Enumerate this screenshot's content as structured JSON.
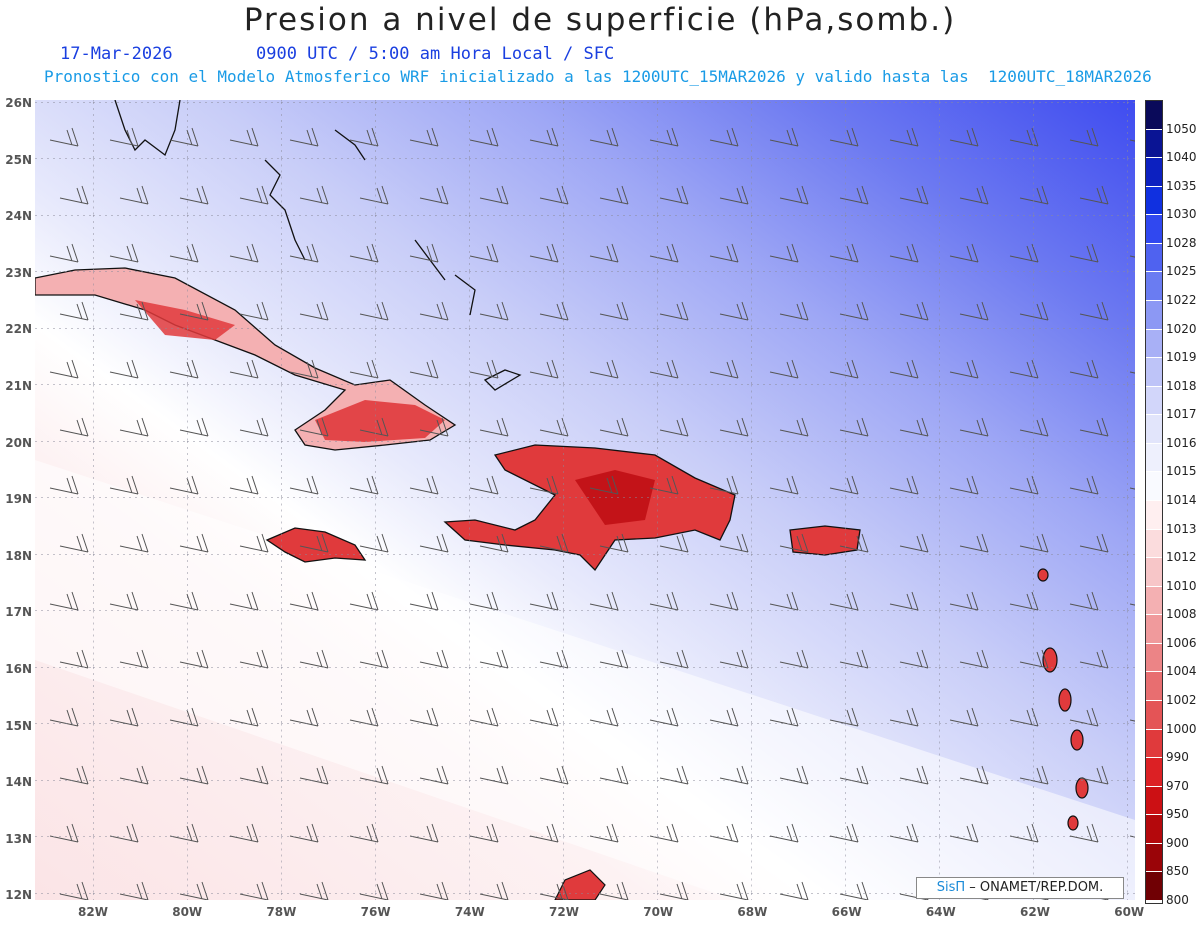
{
  "title": "Presion a nivel de superficie (hPa,somb.)",
  "date": "17-Mar-2026",
  "time_info": "0900 UTC / 5:00 am Hora Local / SFC",
  "forecast_info": "Pronostico con el Modelo Atmosferico WRF inicializado a las 1200UTC_15MAR2026 y valido hasta las  1200UTC_18MAR2026",
  "credit": {
    "brand": "SisΠ",
    "text": " – ONAMET/REP.DOM."
  },
  "map": {
    "lon_range": [
      -83.2,
      -59.9
    ],
    "lat_range": [
      11.9,
      26.1
    ],
    "lat_labels": [
      "26N",
      "25N",
      "24N",
      "23N",
      "22N",
      "21N",
      "20N",
      "19N",
      "18N",
      "17N",
      "16N",
      "15N",
      "14N",
      "13N",
      "12N"
    ],
    "lon_labels": [
      "82W",
      "80W",
      "78W",
      "76W",
      "74W",
      "72W",
      "70W",
      "68W",
      "66W",
      "64W",
      "62W",
      "60W"
    ],
    "colorbar_labels": [
      "1050",
      "1040",
      "1035",
      "1030",
      "1028",
      "1025",
      "1022",
      "1020",
      "1019",
      "1018",
      "1017",
      "1016",
      "1015",
      "1014",
      "1013",
      "1012",
      "1010",
      "1008",
      "1006",
      "1004",
      "1002",
      "1000",
      "990",
      "970",
      "950",
      "900",
      "850",
      "800"
    ],
    "colorbar_colors": [
      "#0a0a5a",
      "#0a1494",
      "#0c20c0",
      "#1030e0",
      "#3048f0",
      "#4f62f0",
      "#6a7cf2",
      "#8c98f4",
      "#a8b0f6",
      "#bec4f8",
      "#d2d6fa",
      "#e2e5fb",
      "#eef0fd",
      "#f9faff",
      "#ffeff0",
      "#fbdcdd",
      "#f7c6c8",
      "#f4b0b2",
      "#f09a9c",
      "#ec8486",
      "#e86e70",
      "#e45456",
      "#e03a3c",
      "#dc2024",
      "#cc1014",
      "#b4080c",
      "#9a0408",
      "#700004"
    ]
  }
}
